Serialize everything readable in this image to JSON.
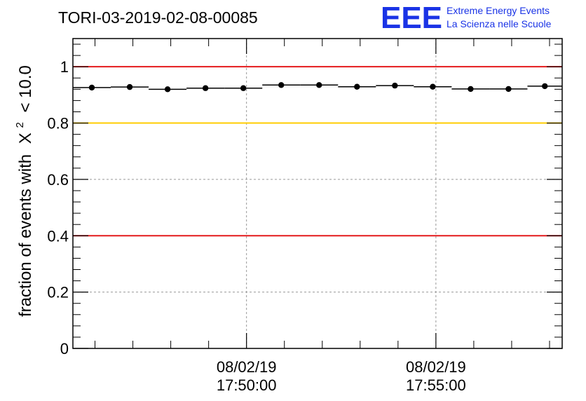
{
  "chart_data": {
    "type": "scatter",
    "title": "TORI-03-2019-02-08-00085",
    "ylabel": "fraction of events with",
    "ylabel_math": {
      "symbol": "X",
      "superscript": "2",
      "suffix": "< 10.0"
    },
    "ylim": [
      0,
      1.1
    ],
    "y_ticks": [
      {
        "value": 0,
        "label": "0"
      },
      {
        "value": 0.2,
        "label": "0.2"
      },
      {
        "value": 0.4,
        "label": "0.4"
      },
      {
        "value": 0.6,
        "label": "0.6"
      },
      {
        "value": 0.8,
        "label": "0.8"
      },
      {
        "value": 1,
        "label": "1"
      }
    ],
    "xlim": [
      "17:45:25",
      "17:58:20"
    ],
    "x_ticks": [
      {
        "value": "17:50:00",
        "date_label": "08/02/19",
        "time_label": "17:50:00"
      },
      {
        "value": "17:55:00",
        "date_label": "08/02/19",
        "time_label": "17:55:00"
      }
    ],
    "grid": true,
    "reference_lines": [
      {
        "y": 1.0,
        "color": "#e41a1c"
      },
      {
        "y": 0.8,
        "color": "#ffcc00"
      },
      {
        "y": 0.4,
        "color": "#e41a1c"
      }
    ],
    "points": [
      {
        "x_start": "17:45:25",
        "x_end": "17:46:25",
        "y": 0.926
      },
      {
        "x_start": "17:46:25",
        "x_end": "17:47:25",
        "y": 0.928
      },
      {
        "x_start": "17:47:25",
        "x_end": "17:48:25",
        "y": 0.92
      },
      {
        "x_start": "17:48:25",
        "x_end": "17:49:25",
        "y": 0.924
      },
      {
        "x_start": "17:49:25",
        "x_end": "17:50:25",
        "y": 0.924
      },
      {
        "x_start": "17:50:25",
        "x_end": "17:51:25",
        "y": 0.935
      },
      {
        "x_start": "17:51:25",
        "x_end": "17:52:25",
        "y": 0.935
      },
      {
        "x_start": "17:52:25",
        "x_end": "17:53:25",
        "y": 0.929
      },
      {
        "x_start": "17:53:25",
        "x_end": "17:54:25",
        "y": 0.933
      },
      {
        "x_start": "17:54:25",
        "x_end": "17:55:25",
        "y": 0.929
      },
      {
        "x_start": "17:55:25",
        "x_end": "17:56:25",
        "y": 0.921
      },
      {
        "x_start": "17:56:25",
        "x_end": "17:57:25",
        "y": 0.921
      },
      {
        "x_start": "17:57:25",
        "x_end": "17:58:20",
        "y": 0.931
      }
    ]
  },
  "logo": {
    "mark": "EEE",
    "line1": "Extreme Energy Events",
    "line2": "La Scienza nelle Scuole",
    "color": "#1a33e6"
  }
}
